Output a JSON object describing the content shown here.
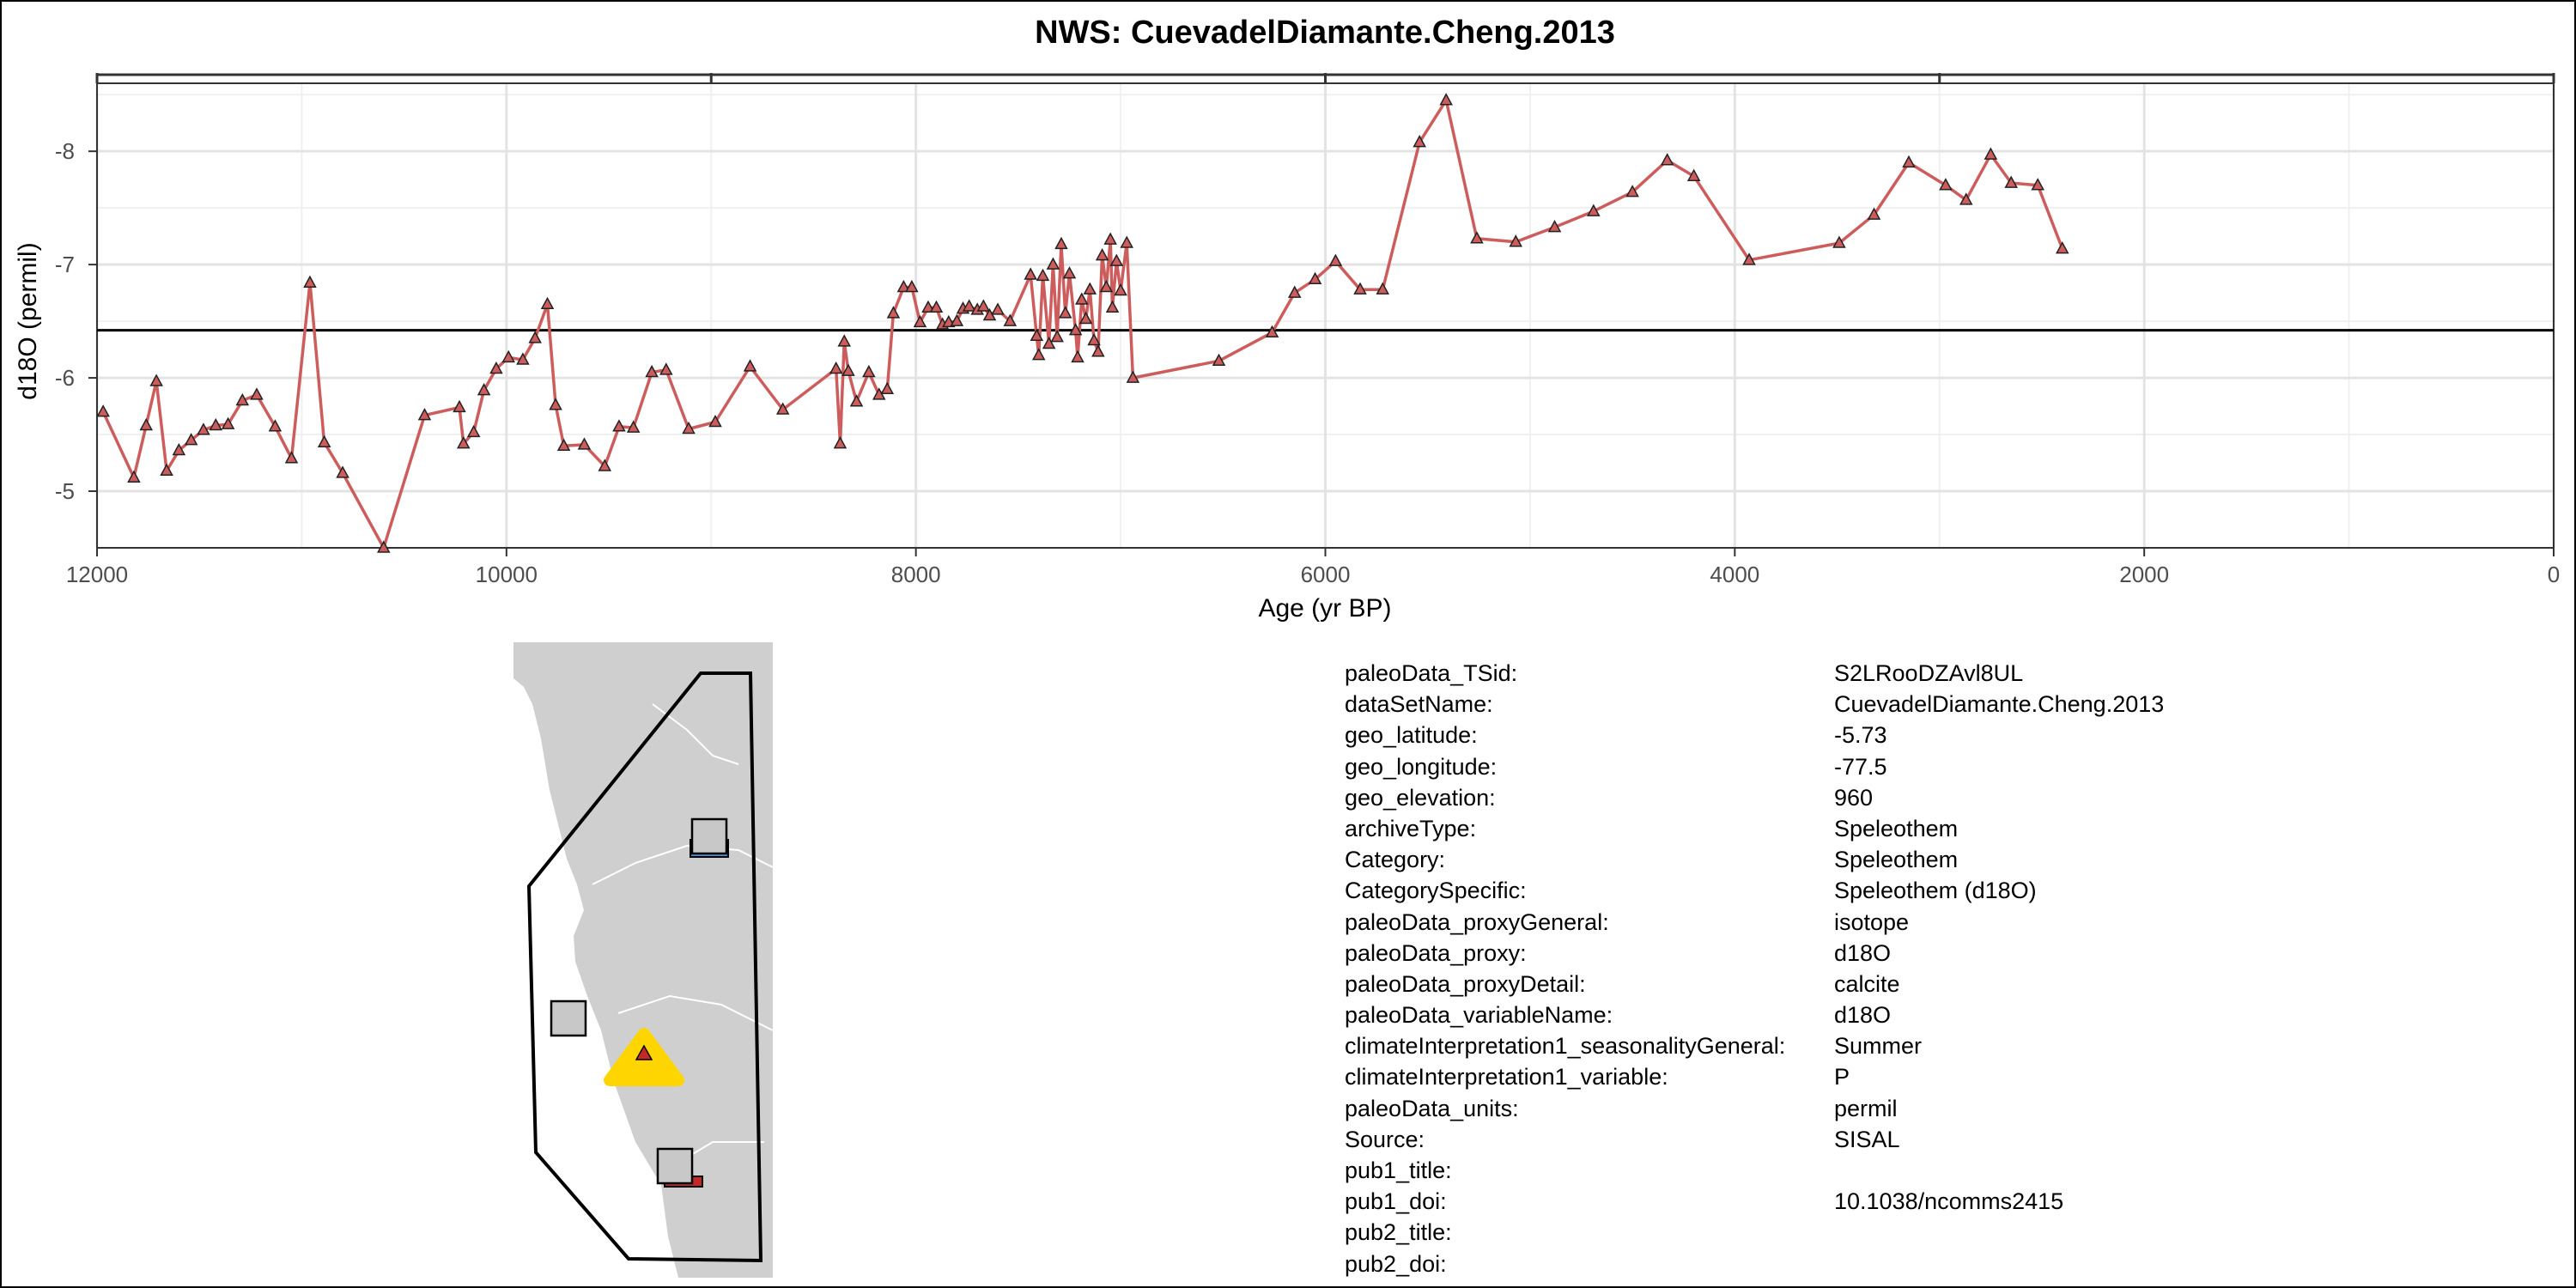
{
  "chart_data": {
    "type": "line",
    "title": "NWS: CuevadelDiamante.Cheng.2013",
    "xlabel": "Age (yr BP)",
    "ylabel": "d18O (permil)",
    "x_reversed": true,
    "y_reversed": true,
    "xlim": [
      12000,
      0
    ],
    "ylim": [
      -4.5,
      -8.6
    ],
    "x_ticks": [
      12000,
      10000,
      8000,
      6000,
      4000,
      2000,
      0
    ],
    "x_tick_labels": [
      "12000",
      "10000",
      "8000",
      "6000",
      "4000",
      "2000",
      "0"
    ],
    "y_ticks": [
      -5,
      -6,
      -7,
      -8
    ],
    "y_tick_labels": [
      "-5",
      "-6",
      "-7",
      "-8"
    ],
    "grid": true,
    "reference_line_y": -6.42,
    "series": [
      {
        "color": "#cd5c5c",
        "marker": "triangle",
        "x": [
          11970,
          11820,
          11760,
          11710,
          11660,
          11600,
          11540,
          11480,
          11420,
          11360,
          11290,
          11220,
          11130,
          11050,
          10960,
          10890,
          10800,
          10600,
          10400,
          10230,
          10210,
          10160,
          10110,
          10050,
          9990,
          9920,
          9860,
          9800,
          9760,
          9720,
          9620,
          9520,
          9450,
          9380,
          9290,
          9220,
          9110,
          8980,
          8810,
          8650,
          8390,
          8370,
          8350,
          8330,
          8290,
          8230,
          8180,
          8140,
          8110,
          8060,
          8020,
          7980,
          7940,
          7900,
          7870,
          7840,
          7800,
          7770,
          7740,
          7700,
          7670,
          7640,
          7600,
          7540,
          7440,
          7410,
          7400,
          7380,
          7350,
          7330,
          7310,
          7290,
          7270,
          7250,
          7220,
          7210,
          7190,
          7170,
          7150,
          7130,
          7110,
          7090,
          7070,
          7050,
          7040,
          7020,
          7000,
          6970,
          6940,
          6520,
          6260,
          6150,
          6050,
          5950,
          5830,
          5720,
          5540,
          5410,
          5260,
          5070,
          4880,
          4690,
          4500,
          4330,
          4200,
          3930,
          3490,
          3320,
          3150,
          2970,
          2870,
          2750,
          2650,
          2520,
          2400
        ],
        "y": [
          -5.7,
          -5.12,
          -5.58,
          -5.97,
          -5.18,
          -5.36,
          -5.45,
          -5.54,
          -5.58,
          -5.59,
          -5.8,
          -5.85,
          -5.57,
          -5.29,
          -6.84,
          -5.43,
          -5.16,
          -4.5,
          -5.67,
          -5.74,
          -5.42,
          -5.52,
          -5.89,
          -6.08,
          -6.18,
          -6.16,
          -6.35,
          -6.65,
          -5.76,
          -5.4,
          -5.41,
          -5.22,
          -5.57,
          -5.56,
          -6.05,
          -6.07,
          -5.55,
          -5.61,
          -6.1,
          -5.72,
          -6.08,
          -5.42,
          -6.32,
          -6.06,
          -5.79,
          -6.05,
          -5.85,
          -5.9,
          -6.57,
          -6.8,
          -6.8,
          -6.49,
          -6.62,
          -6.62,
          -6.47,
          -6.49,
          -6.5,
          -6.61,
          -6.63,
          -6.6,
          -6.63,
          -6.55,
          -6.6,
          -6.5,
          -6.91,
          -6.37,
          -6.2,
          -6.9,
          -6.3,
          -7.0,
          -6.36,
          -7.18,
          -6.57,
          -6.92,
          -6.42,
          -6.18,
          -6.69,
          -6.52,
          -6.78,
          -6.33,
          -6.23,
          -7.08,
          -6.8,
          -7.22,
          -6.62,
          -7.03,
          -6.77,
          -7.19,
          -6.0,
          -6.15,
          -6.4,
          -6.75,
          -6.87,
          -7.03,
          -6.78,
          -6.78,
          -8.08,
          -8.45,
          -7.23,
          -7.2,
          -7.33,
          -7.47,
          -7.64,
          -7.92,
          -7.78,
          -7.04,
          -7.19,
          -7.44,
          -7.9,
          -7.7,
          -7.57,
          -7.97,
          -7.72,
          -7.7,
          -7.14
        ]
      }
    ]
  },
  "map": {
    "land_color": "#cfcfcf",
    "outline_color": "#000000",
    "site_marker_color": "#ffd500",
    "site_marker_inner_color": "#c62828"
  },
  "metadata": [
    {
      "key": "paleoData_TSid:",
      "value": "S2LRooDZAvl8UL"
    },
    {
      "key": "dataSetName:",
      "value": "CuevadelDiamante.Cheng.2013"
    },
    {
      "key": "geo_latitude:",
      "value": "-5.73"
    },
    {
      "key": "geo_longitude:",
      "value": "-77.5"
    },
    {
      "key": "geo_elevation:",
      "value": "960"
    },
    {
      "key": "archiveType:",
      "value": "Speleothem"
    },
    {
      "key": "Category:",
      "value": "Speleothem"
    },
    {
      "key": "CategorySpecific:",
      "value": "Speleothem (d18O)"
    },
    {
      "key": "paleoData_proxyGeneral:",
      "value": "isotope"
    },
    {
      "key": "paleoData_proxy:",
      "value": "d18O"
    },
    {
      "key": "paleoData_proxyDetail:",
      "value": "calcite"
    },
    {
      "key": "paleoData_variableName:",
      "value": "d18O"
    },
    {
      "key": "climateInterpretation1_seasonalityGeneral:",
      "value": "Summer"
    },
    {
      "key": "climateInterpretation1_variable:",
      "value": "P"
    },
    {
      "key": "paleoData_units:",
      "value": "permil"
    },
    {
      "key": "Source:",
      "value": "SISAL"
    },
    {
      "key": "pub1_title:",
      "value": ""
    },
    {
      "key": "pub1_doi:",
      "value": "10.1038/ncomms2415"
    },
    {
      "key": "pub2_title:",
      "value": ""
    },
    {
      "key": "pub2_doi:",
      "value": ""
    }
  ]
}
